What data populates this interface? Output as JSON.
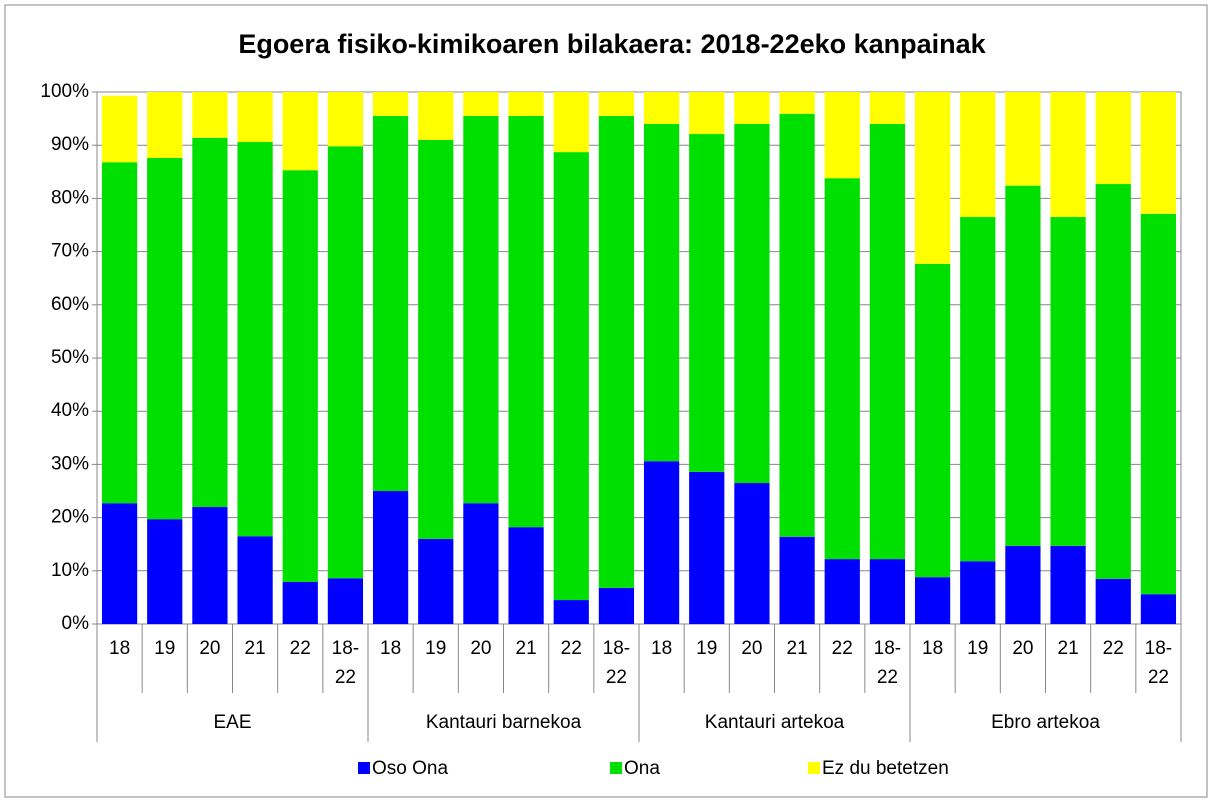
{
  "chart_data": {
    "type": "stacked_bar",
    "title": "Egoera fisiko-kimikoaren bilakaera: 2018-22eko kanpainak",
    "category_groups": [
      {
        "name": "EAE",
        "categories": [
          "18",
          "19",
          "20",
          "21",
          "22",
          "18-22"
        ]
      },
      {
        "name": "Kantauri barnekoa",
        "categories": [
          "18",
          "19",
          "20",
          "21",
          "22",
          "18-22"
        ]
      },
      {
        "name": "Kantauri artekoa",
        "categories": [
          "18",
          "19",
          "20",
          "21",
          "22",
          "18-22"
        ]
      },
      {
        "name": "Ebro artekoa",
        "categories": [
          "18",
          "19",
          "20",
          "21",
          "22",
          "18-22"
        ]
      }
    ],
    "series": [
      {
        "name": "Oso Ona",
        "color": "#0000ff",
        "values": [
          22.7,
          19.7,
          22,
          16.5,
          7.9,
          8.6,
          25,
          16,
          22.7,
          18.2,
          4.5,
          6.8,
          30.6,
          28.6,
          26.5,
          16.4,
          12.2,
          12.2,
          8.8,
          11.8,
          14.7,
          14.7,
          8.5,
          5.6
        ]
      },
      {
        "name": "Ona",
        "color": "#00e000",
        "values": [
          64.1,
          67.9,
          69.4,
          74.1,
          77.4,
          81.2,
          70.5,
          75,
          72.8,
          77.3,
          84.2,
          88.7,
          63.4,
          63.5,
          67.5,
          79.5,
          71.6,
          81.8,
          58.9,
          64.7,
          67.7,
          61.8,
          74.2,
          71.5
        ]
      },
      {
        "name": "Ez du betetzen",
        "color": "#ffff00",
        "values": [
          12.5,
          12.4,
          8.6,
          9.4,
          14.7,
          10.2,
          4.5,
          9,
          4.5,
          4.5,
          11.3,
          4.5,
          6,
          7.9,
          6,
          4.1,
          16.2,
          6,
          32.3,
          23.5,
          17.6,
          23.5,
          17.3,
          22.9
        ]
      }
    ],
    "ylim": [
      0,
      100
    ],
    "yticks": [
      {
        "value": 0,
        "label": "0%"
      },
      {
        "value": 10,
        "label": "10%"
      },
      {
        "value": 20,
        "label": "20%"
      },
      {
        "value": 30,
        "label": "30%"
      },
      {
        "value": 40,
        "label": "40%"
      },
      {
        "value": 50,
        "label": "50%"
      },
      {
        "value": 60,
        "label": "60%"
      },
      {
        "value": 70,
        "label": "70%"
      },
      {
        "value": 80,
        "label": "80%"
      },
      {
        "value": 90,
        "label": "90%"
      },
      {
        "value": 100,
        "label": "100%"
      }
    ],
    "grid": true
  }
}
